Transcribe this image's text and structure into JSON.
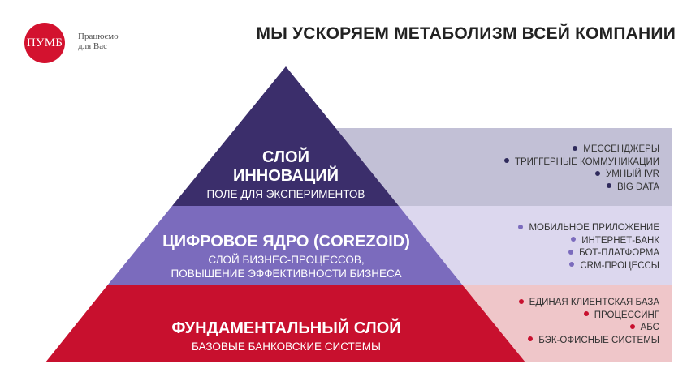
{
  "brand": {
    "logo_text": "ПУМБ",
    "tagline_line1": "Працюємо",
    "tagline_line2": "для Вас",
    "color": "#d3122f"
  },
  "title": "МЫ УСКОРЯЕМ МЕТАБОЛИЗМ ВСЕЙ КОМПАНИИ",
  "layers": [
    {
      "name_line1": "СЛОЙ",
      "name_line2": "ИННОВАЦИЙ",
      "description": "ПОЛЕ ДЛЯ ЭКСПЕРИМЕНТОВ",
      "color": "#3b2e6b",
      "band_color": "#c2c0d6",
      "dot_color": "#2f2a5c",
      "features": [
        "МЕССЕНДЖЕРЫ",
        "ТРИГГЕРНЫЕ КОММУНИКАЦИИ",
        "УМНЫЙ IVR",
        "BIG DATA"
      ]
    },
    {
      "name": "ЦИФРОВОЕ ЯДРО (COREZOID)",
      "description_line1": "СЛОЙ БИЗНЕС-ПРОЦЕССОВ,",
      "description_line2": "ПОВЫШЕНИЕ ЭФФЕКТИВНОСТИ БИЗНЕСА",
      "color": "#7b6bbd",
      "band_color": "#dcd7ee",
      "dot_color": "#7b6bbd",
      "features": [
        "МОБИЛЬНОЕ ПРИЛОЖЕНИЕ",
        "ИНТЕРНЕТ-БАНК",
        "БОТ-ПЛАТФОРМА",
        "CRM-ПРОЦЕССЫ"
      ]
    },
    {
      "name": "ФУНДАМЕНТАЛЬНЫЙ СЛОЙ",
      "description": "БАЗОВЫЕ БАНКОВСКИЕ СИСТЕМЫ",
      "color": "#c8102e",
      "band_color": "#efc6c9",
      "dot_color": "#c8102e",
      "features": [
        "ЕДИНАЯ КЛИЕНТСКАЯ БАЗА",
        "ПРОЦЕССИНГ",
        "АБС",
        "БЭК-ОФИСНЫЕ СИСТЕМЫ"
      ]
    }
  ]
}
